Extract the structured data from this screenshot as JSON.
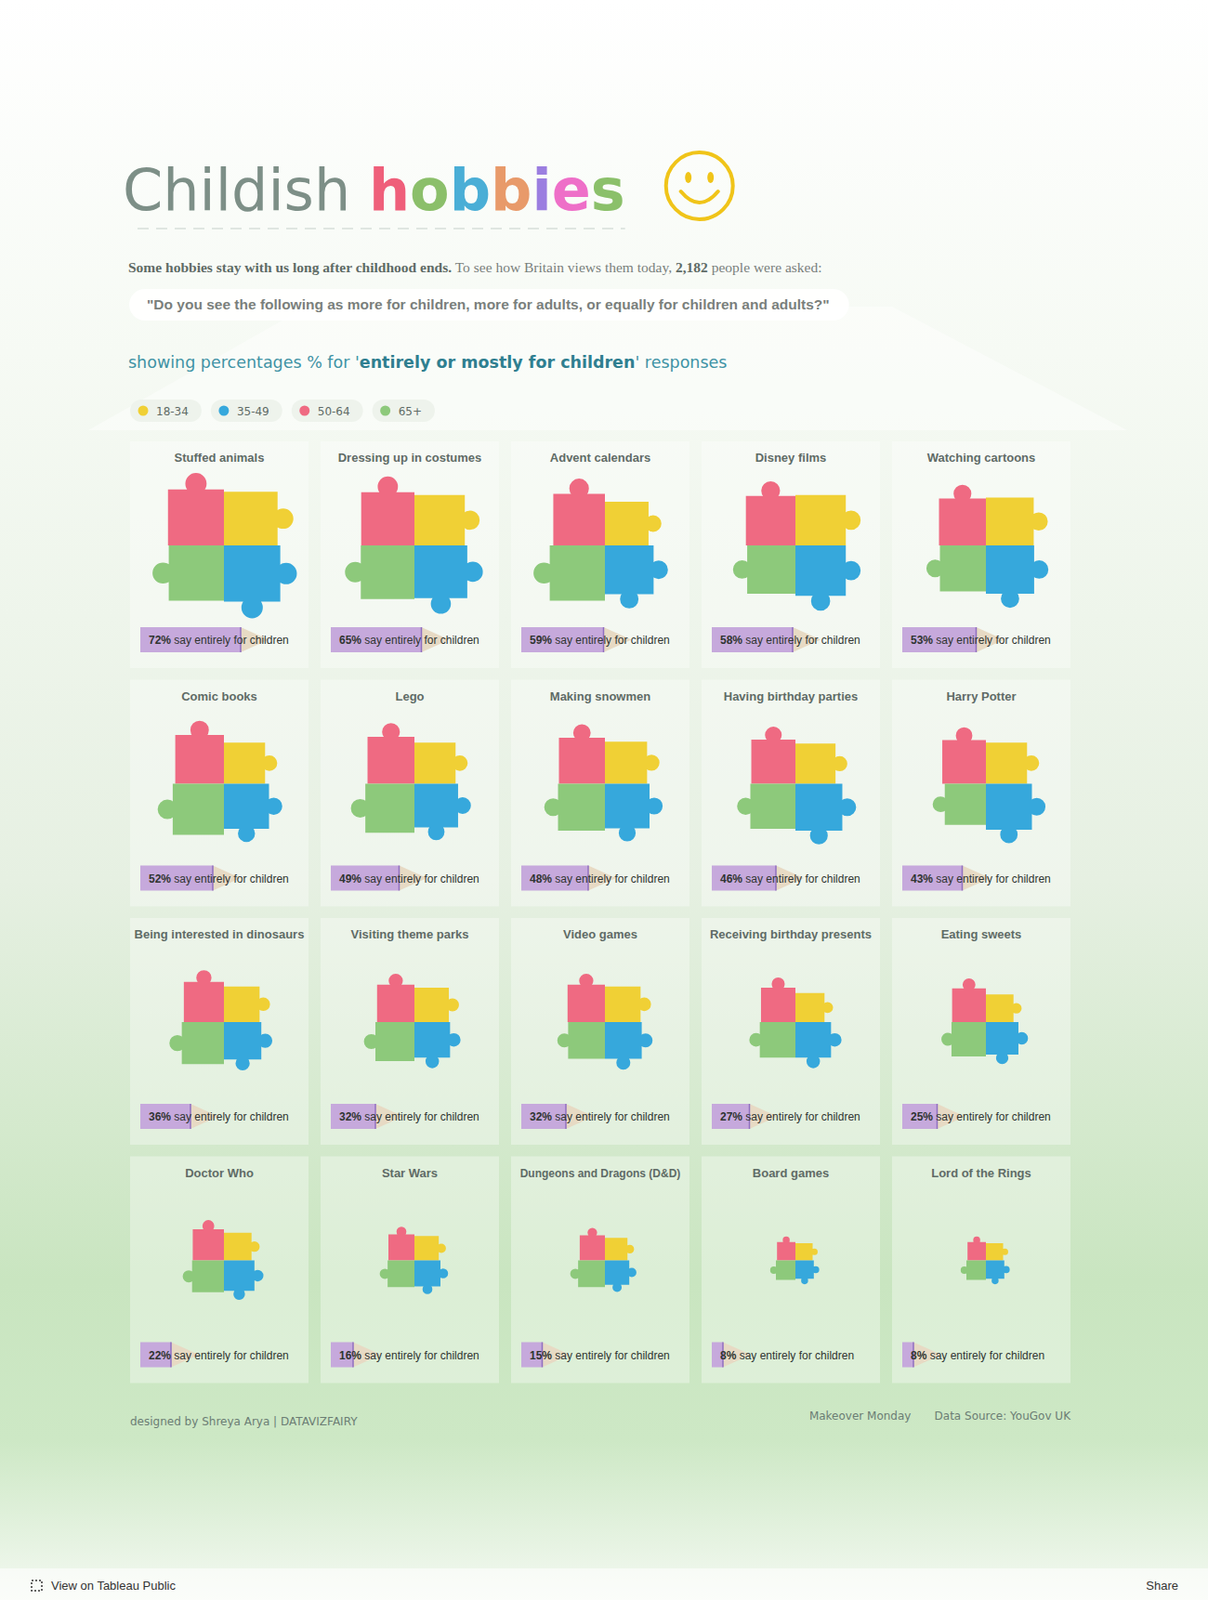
{
  "chart_data": {
    "type": "puzzle",
    "title": "Childish hobbies",
    "intro": [
      "Some hobbies stay with us long after childhood ends.",
      " To see how Britain views them today, ",
      "2,182",
      " people were asked:"
    ],
    "question": "\"Do you see the following as more for children, more for adults, or equally for children and adults?\"",
    "subtitle": [
      "showing percentages % for '",
      "entirely or mostly for children",
      "' responses"
    ],
    "annotation": " say entirely for children",
    "categories": [
      "Stuffed animals",
      "Dressing up in costumes",
      "Advent calendars",
      "Disney films",
      "Watching cartoons",
      "Comic books",
      "Lego",
      "Making snowmen",
      "Having birthday parties",
      "Harry Potter",
      "Being interested in dinosaurs",
      "Visiting theme parks",
      "Video games",
      "Receiving birthday presents",
      "Eating sweets",
      "Doctor Who",
      "Star Wars",
      "Dungeons and Dragons (D&D)",
      "Board games",
      "Lord of the Rings"
    ],
    "values": [
      72,
      65,
      59,
      58,
      53,
      52,
      49,
      48,
      46,
      43,
      36,
      32,
      32,
      27,
      25,
      22,
      16,
      15,
      8,
      8
    ],
    "value_labels": [
      "72%",
      "65%",
      "59%",
      "58%",
      "53%",
      "52%",
      "49%",
      "48%",
      "46%",
      "43%",
      "36%",
      "32%",
      "32%",
      "27%",
      "25%",
      "22%",
      "16%",
      "15%",
      "8%",
      "8%"
    ],
    "color": "#c6a9dc",
    "series": [
      {
        "name": "18-34",
        "color": "#f0d035",
        "values": [
          68,
          60,
          45,
          60,
          54,
          40,
          40,
          42,
          38,
          40,
          30,
          28,
          30,
          20,
          18,
          18,
          14,
          12,
          7,
          7
        ]
      },
      {
        "name": "35-49",
        "color": "#36a8dc",
        "values": [
          75,
          66,
          56,
          60,
          55,
          48,
          45,
          47,
          52,
          50,
          33,
          30,
          32,
          30,
          25,
          22,
          16,
          14,
          8,
          8
        ]
      },
      {
        "name": "50-64",
        "color": "#ef6a82",
        "values": [
          74,
          67,
          63,
          58,
          52,
          56,
          52,
          50,
          46,
          45,
          38,
          33,
          33,
          28,
          27,
          23,
          16,
          15,
          8,
          8
        ]
      },
      {
        "name": "65+",
        "color": "#8dc97b",
        "values": [
          72,
          68,
          72,
          55,
          50,
          62,
          57,
          52,
          48,
          40,
          42,
          36,
          32,
          30,
          28,
          24,
          17,
          17,
          9,
          9
        ]
      }
    ],
    "ylim": [
      0,
      100
    ],
    "legend": "top-left",
    "data_labels": true,
    "tick_labels": false,
    "footer_left": "designed by Shreya Arya  |  DATAVIZFAIRY",
    "footer_right": [
      "Makeover Monday",
      "Data Source: YouGov UK"
    ],
    "toolbar": [
      "View on Tableau Public",
      "Share"
    ]
  }
}
